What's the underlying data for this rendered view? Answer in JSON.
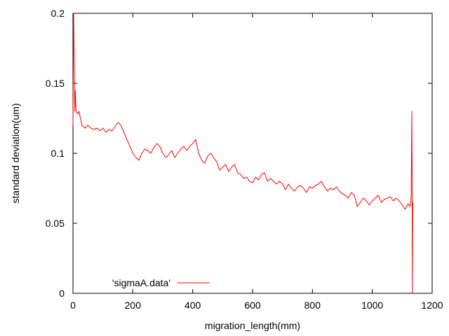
{
  "chart_data": {
    "type": "line",
    "title": "",
    "xlabel": "migration_length(mm)",
    "ylabel": "standard deviation(um)",
    "xlim": [
      0,
      1200
    ],
    "ylim": [
      0,
      0.2
    ],
    "xticks": [
      0,
      200,
      400,
      600,
      800,
      1000,
      1200
    ],
    "yticks": [
      0,
      0.05,
      0.1,
      0.15,
      0.2
    ],
    "xtick_labels": [
      "0",
      "200",
      "400",
      "600",
      "800",
      "1000",
      "1200"
    ],
    "ytick_labels": [
      "0",
      "0.05",
      "0.1",
      "0.15",
      "0.2"
    ],
    "grid": false,
    "legend": {
      "position": "bottom-left"
    },
    "series": [
      {
        "name": "'sigmaA.data'",
        "color": "#ff0000",
        "x": [
          0,
          2,
          4,
          6,
          8,
          10,
          15,
          20,
          30,
          40,
          50,
          60,
          70,
          80,
          90,
          100,
          110,
          120,
          130,
          140,
          150,
          160,
          170,
          180,
          190,
          200,
          210,
          220,
          230,
          240,
          250,
          260,
          270,
          280,
          290,
          300,
          310,
          320,
          330,
          340,
          350,
          360,
          370,
          380,
          390,
          400,
          410,
          420,
          430,
          440,
          450,
          460,
          470,
          480,
          490,
          500,
          510,
          520,
          530,
          540,
          550,
          560,
          570,
          580,
          590,
          600,
          610,
          620,
          630,
          640,
          650,
          660,
          670,
          680,
          690,
          700,
          710,
          720,
          730,
          740,
          750,
          760,
          770,
          780,
          790,
          800,
          810,
          820,
          830,
          840,
          850,
          860,
          870,
          880,
          890,
          900,
          910,
          920,
          930,
          940,
          950,
          960,
          970,
          980,
          990,
          1000,
          1010,
          1020,
          1030,
          1040,
          1050,
          1060,
          1070,
          1080,
          1090,
          1100,
          1110,
          1120,
          1125,
          1128,
          1130,
          1132,
          1133,
          1134,
          1135
        ],
        "y": [
          0.12,
          0.2,
          0.17,
          0.13,
          0.145,
          0.13,
          0.128,
          0.13,
          0.12,
          0.118,
          0.12,
          0.118,
          0.117,
          0.118,
          0.116,
          0.118,
          0.115,
          0.117,
          0.116,
          0.119,
          0.122,
          0.12,
          0.115,
          0.11,
          0.105,
          0.1,
          0.097,
          0.095,
          0.1,
          0.103,
          0.102,
          0.1,
          0.104,
          0.107,
          0.105,
          0.1,
          0.097,
          0.099,
          0.102,
          0.097,
          0.1,
          0.103,
          0.105,
          0.102,
          0.105,
          0.107,
          0.11,
          0.1,
          0.095,
          0.093,
          0.098,
          0.1,
          0.097,
          0.094,
          0.088,
          0.09,
          0.092,
          0.087,
          0.09,
          0.092,
          0.086,
          0.085,
          0.082,
          0.083,
          0.08,
          0.079,
          0.083,
          0.081,
          0.085,
          0.086,
          0.08,
          0.082,
          0.08,
          0.078,
          0.08,
          0.078,
          0.074,
          0.078,
          0.075,
          0.073,
          0.076,
          0.077,
          0.075,
          0.072,
          0.076,
          0.075,
          0.077,
          0.078,
          0.08,
          0.076,
          0.073,
          0.075,
          0.074,
          0.076,
          0.073,
          0.071,
          0.07,
          0.068,
          0.072,
          0.07,
          0.062,
          0.065,
          0.068,
          0.066,
          0.063,
          0.066,
          0.068,
          0.07,
          0.065,
          0.067,
          0.068,
          0.069,
          0.066,
          0.068,
          0.066,
          0.063,
          0.06,
          0.064,
          0.062,
          0.063,
          0.07,
          0.13,
          0.09,
          0.0,
          0.065
        ]
      }
    ]
  }
}
